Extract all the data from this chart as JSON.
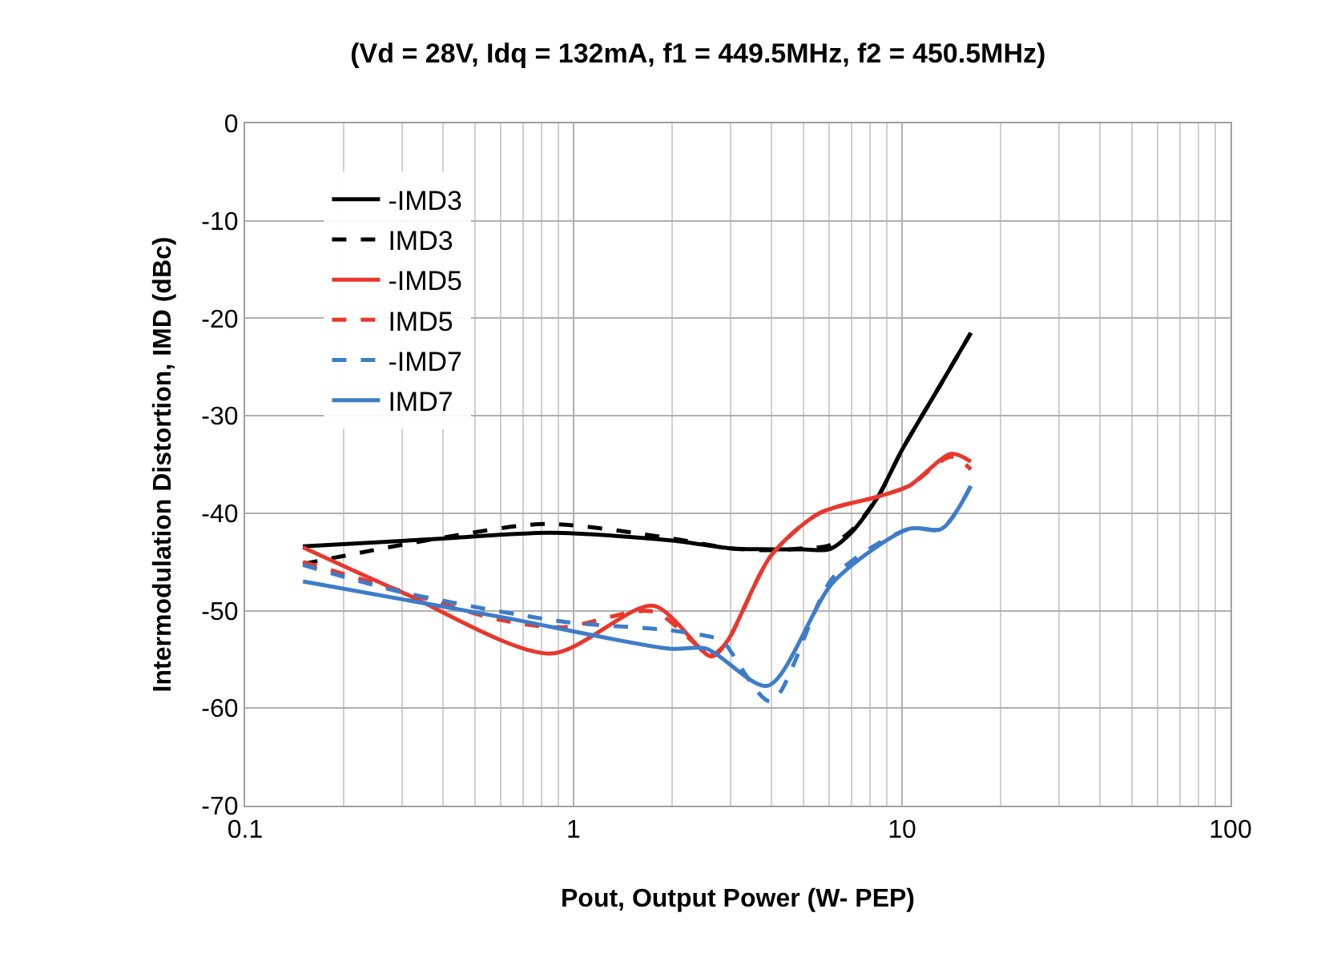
{
  "chart_data": {
    "type": "line",
    "title": "(Vd = 28V, Idq = 132mA, f1 = 449.5MHz, f2 = 450.5MHz)",
    "xlabel": "Pout, Output Power (W- PEP)",
    "ylabel": "Intermodulation Distortion, IMD (dBc)",
    "log": "x",
    "xlim": [
      0.1,
      100
    ],
    "xticks": [
      0.1,
      1,
      10,
      100
    ],
    "ylim": [
      -70,
      0
    ],
    "yticks": [
      -70,
      -60,
      -50,
      -40,
      -30,
      -20,
      -10,
      0
    ],
    "grid": true,
    "legend": "top left",
    "marker": "none",
    "series": [
      {
        "name": "-IMD3",
        "color": "#000000",
        "line_style": "solid",
        "x": [
          0.15,
          0.4,
          0.85,
          2,
          3,
          4,
          5,
          6,
          7,
          8.45,
          10,
          13,
          16.2
        ],
        "values": [
          -43.4,
          -42.6,
          -42,
          -42.8,
          -43.6,
          -43.7,
          -43.7,
          -43.7,
          -42,
          -38.3,
          -33.5,
          -27,
          -21.5
        ]
      },
      {
        "name": "IMD3",
        "color": "#000000",
        "line_style": "dashed",
        "x": [
          0.15,
          0.4,
          0.83,
          2,
          3,
          4,
          5,
          6,
          7,
          8.45,
          10,
          13,
          16.2
        ],
        "values": [
          -45.2,
          -42.5,
          -41.1,
          -42.6,
          -43.6,
          -43.8,
          -43.6,
          -43.3,
          -41.8,
          -38.3,
          -33.5,
          -27,
          -21.5
        ]
      },
      {
        "name": "-IMD5",
        "color": "#e8382c",
        "line_style": "solid",
        "x": [
          0.15,
          0.3,
          0.85,
          1.75,
          2.63,
          2.94,
          3.98,
          5.6,
          8.45,
          10.5,
          14.1,
          16.2
        ],
        "values": [
          -43.5,
          -48.1,
          -54.4,
          -49.5,
          -54.7,
          -53.1,
          -44.4,
          -40,
          -38.3,
          -37.2,
          -33.9,
          -34.7
        ]
      },
      {
        "name": "IMD5",
        "color": "#e8382c",
        "line_style": "dashed",
        "x": [
          0.15,
          0.3,
          0.59,
          0.92,
          1.75,
          2.63,
          2.94,
          3.98,
          5.6,
          8.45,
          10.5,
          14.1,
          16.2
        ],
        "values": [
          -45,
          -48,
          -50.9,
          -51.7,
          -50.1,
          -54.5,
          -53.1,
          -44.4,
          -40,
          -38.3,
          -37.2,
          -34.2,
          -35.5
        ]
      },
      {
        "name": "-IMD7",
        "color": "#3d7cc9",
        "line_style": "dashed",
        "x": [
          0.15,
          0.3,
          0.92,
          1.96,
          2.63,
          2.84,
          3.98,
          6.2,
          10.5,
          13.2,
          16.2
        ],
        "values": [
          -45.3,
          -48.1,
          -51.1,
          -52,
          -52.7,
          -53.1,
          -59.3,
          -46.5,
          -41.6,
          -41.6,
          -37.2
        ]
      },
      {
        "name": "IMD7",
        "color": "#3d7cc9",
        "line_style": "solid",
        "x": [
          0.15,
          0.59,
          1.96,
          2.54,
          3.9,
          6.2,
          10.5,
          13.2,
          16.2
        ],
        "values": [
          -47,
          -50.6,
          -53.9,
          -53.9,
          -57.7,
          -47,
          -41.6,
          -41.6,
          -37.2
        ]
      }
    ]
  }
}
